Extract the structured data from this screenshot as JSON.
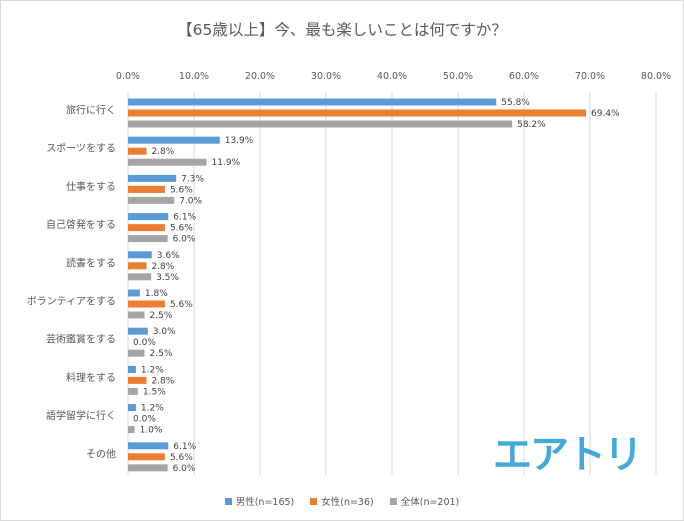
{
  "chart_data": {
    "type": "bar",
    "orientation": "horizontal",
    "title": "【65歳以上】今、最も楽しいことは何ですか？",
    "categories": [
      "旅行に行く",
      "スポーツをする",
      "仕事をする",
      "自己啓発をする",
      "読書をする",
      "ボランティアをする",
      "芸術鑑賞をする",
      "料理をする",
      "語学留学に行く",
      "その他"
    ],
    "series": [
      {
        "name": "男性(n=165)",
        "color": "#5b9bd5",
        "values": [
          55.8,
          13.9,
          7.3,
          6.1,
          3.6,
          1.8,
          3.0,
          1.2,
          1.2,
          6.1
        ],
        "labels": [
          "55.8%",
          "13.9%",
          "7.3%",
          "6.1%",
          "3.6%",
          "1.8%",
          "3.0%",
          "1.2%",
          "1.2%",
          "6.1%"
        ]
      },
      {
        "name": "女性(n=36)",
        "color": "#ed7d31",
        "values": [
          69.4,
          2.8,
          5.6,
          5.6,
          2.8,
          5.6,
          0.0,
          2.8,
          0.0,
          5.6
        ],
        "labels": [
          "69.4%",
          "2.8%",
          "5.6%",
          "5.6%",
          "2.8%",
          "5.6%",
          "0.0%",
          "2.8%",
          "0.0%",
          "5.6%"
        ]
      },
      {
        "name": "全体(n=201)",
        "color": "#a5a5a5",
        "values": [
          58.2,
          11.9,
          7.0,
          6.0,
          3.5,
          2.5,
          2.5,
          1.5,
          1.0,
          6.0
        ],
        "labels": [
          "58.2%",
          "11.9%",
          "7.0%",
          "6.0%",
          "3.5%",
          "2.5%",
          "2.5%",
          "1.5%",
          "1.0%",
          "6.0%"
        ]
      }
    ],
    "xlim": [
      0,
      80
    ],
    "ticks": [
      0,
      10,
      20,
      30,
      40,
      50,
      60,
      70,
      80
    ],
    "tick_labels": [
      "0.0%",
      "10.0%",
      "20.0%",
      "30.0%",
      "40.0%",
      "50.0%",
      "60.0%",
      "70.0%",
      "80.0%"
    ],
    "grid": true,
    "legend_position": "bottom"
  },
  "logo_text": "エアトリ"
}
